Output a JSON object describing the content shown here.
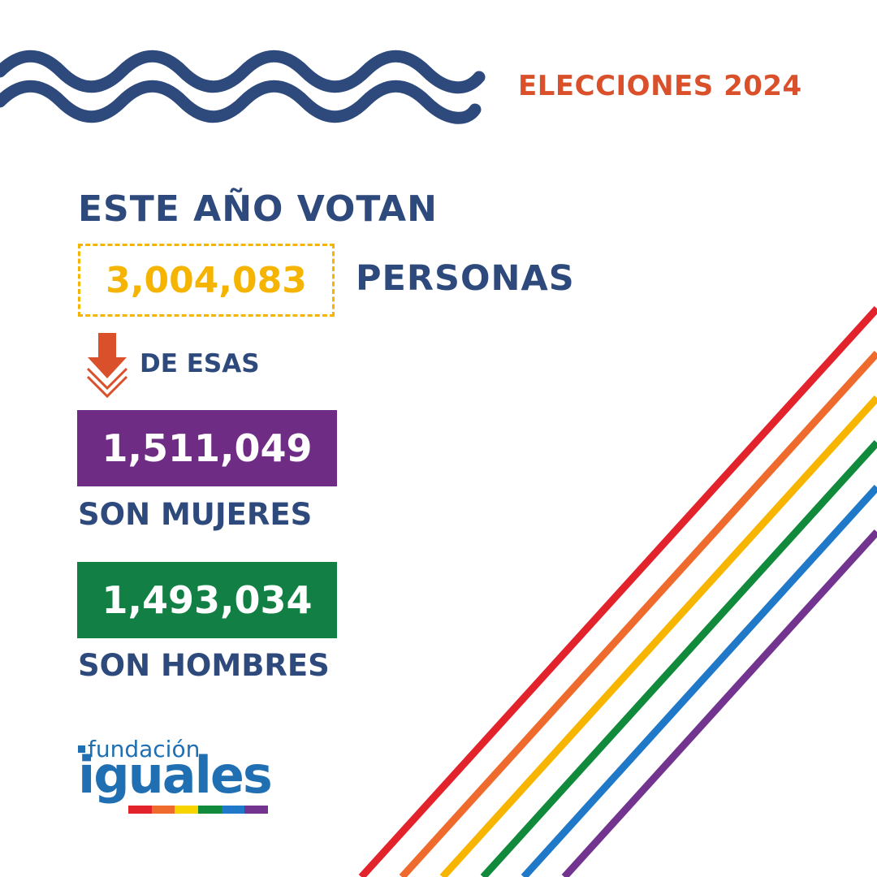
{
  "header": {
    "title": "ELECCIONES 2024"
  },
  "headline": "ESTE AÑO VOTAN",
  "total": {
    "value": "3,004,083",
    "unit": "PERSONAS"
  },
  "subheading": "DE ESAS",
  "women": {
    "value": "1,511,049",
    "label": "SON MUJERES"
  },
  "men": {
    "value": "1,493,034",
    "label": "SON HOMBRES"
  },
  "logo": {
    "top_text": "fundación",
    "main_text": "iguales"
  },
  "colors": {
    "navy": "#2e4a7d",
    "orange_red": "#d9502a",
    "yellow": "#f5b400",
    "purple": "#6e2c84",
    "green": "#128044",
    "rainbow": [
      "#e3232c",
      "#ef6a2d",
      "#f7b500",
      "#128a3c",
      "#1f78c8",
      "#73348f"
    ]
  }
}
